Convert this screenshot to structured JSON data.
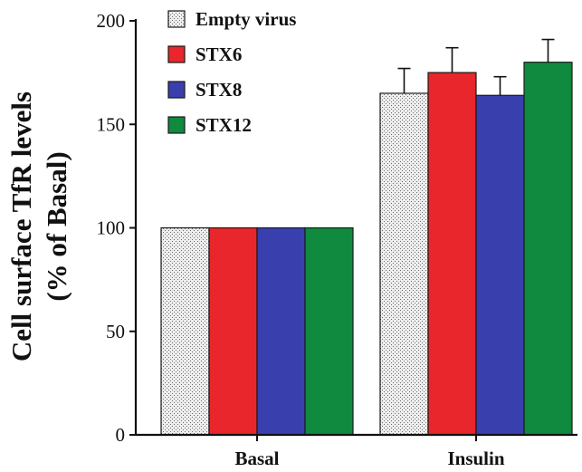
{
  "chart_data": {
    "type": "bar",
    "categories": [
      "Basal",
      "Insulin"
    ],
    "ylabel_lines": [
      "Cell surface TfR levels",
      "(% of Basal)"
    ],
    "xlabel": "",
    "ylim": [
      0,
      200
    ],
    "yticks": [
      0,
      50,
      100,
      150,
      200
    ],
    "grid": false,
    "legend_position": "top-left",
    "series": [
      {
        "name": "Empty virus",
        "color": "#d9d9d9",
        "pattern": "stipple",
        "values": [
          100,
          165
        ],
        "errors": [
          0,
          12
        ]
      },
      {
        "name": "STX6",
        "color": "#e8262b",
        "values": [
          100,
          175
        ],
        "errors": [
          0,
          12
        ]
      },
      {
        "name": "STX8",
        "color": "#3a3fae",
        "values": [
          100,
          164
        ],
        "errors": [
          0,
          9
        ]
      },
      {
        "name": "STX12",
        "color": "#0f8a3f",
        "values": [
          100,
          180
        ],
        "errors": [
          0,
          11
        ]
      }
    ]
  }
}
